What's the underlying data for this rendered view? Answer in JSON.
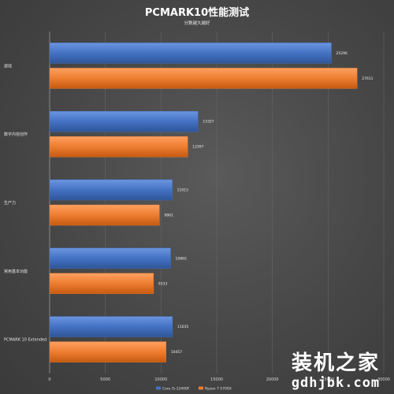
{
  "chart_data": {
    "type": "bar",
    "orientation": "horizontal",
    "title": "PCMARK10性能测试",
    "subtitle": "分数越大越好",
    "categories": [
      "游戏",
      "数字内容创作",
      "生产力",
      "常用基本功能",
      "PCMARK 10 Extended"
    ],
    "series": [
      {
        "name": "Core i5-12400F",
        "color": "#4472c4",
        "values": [
          25296,
          13327,
          11015,
          10865,
          11035
        ]
      },
      {
        "name": "Ryzen 7 5700X",
        "color": "#ed7d31",
        "values": [
          27611,
          12397,
          9861,
          9333,
          10457
        ]
      }
    ],
    "xlim": [
      0,
      30000
    ],
    "xticks": [
      "0",
      "5000",
      "10000",
      "15000",
      "20000",
      "25000",
      "30000"
    ],
    "grid": true,
    "legend_position": "bottom"
  },
  "watermark": {
    "name": "装机之家",
    "url": "gdhjbk.com"
  }
}
